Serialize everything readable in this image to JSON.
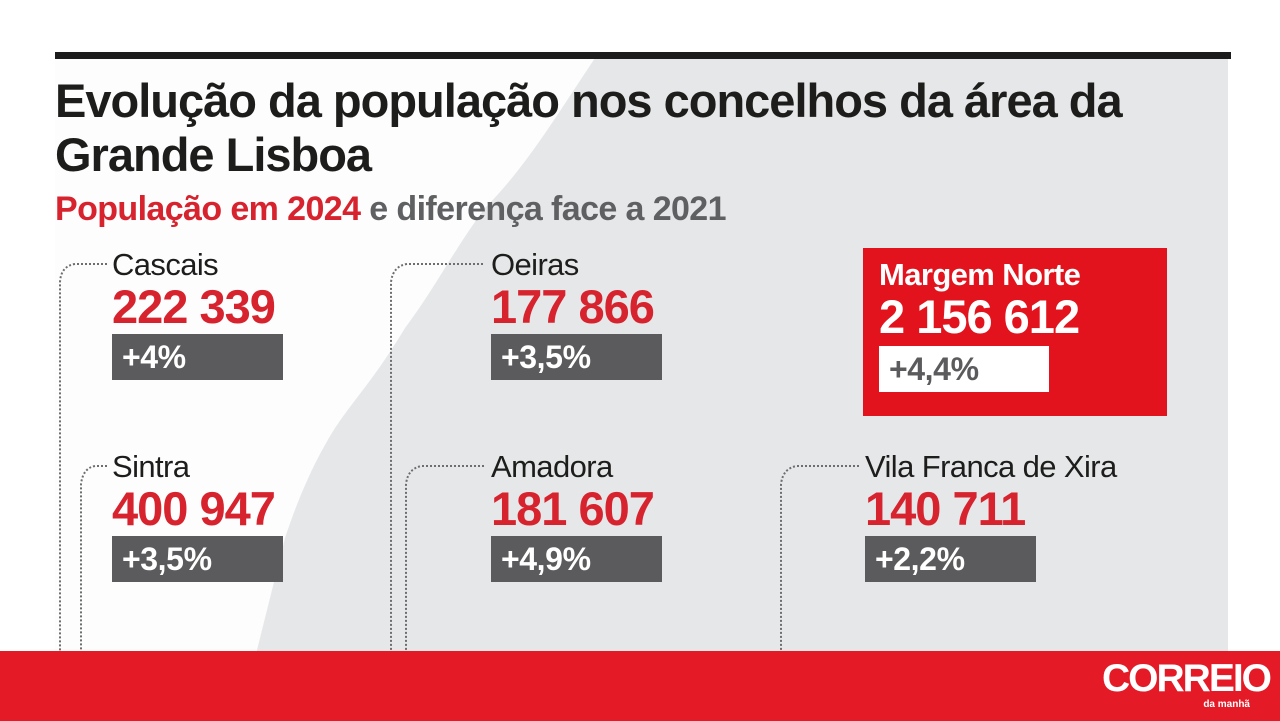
{
  "infographic": {
    "title": "Evolução da população nos concelhos da área da Grande Lisboa",
    "subtitle_highlight": "População em 2024",
    "subtitle_rest": "e diferença face a 2021",
    "municipalities": [
      {
        "name": "Cascais",
        "population_2024": "222 339",
        "change_vs_2021": "+4%"
      },
      {
        "name": "Oeiras",
        "population_2024": "177 866",
        "change_vs_2021": "+3,5%"
      },
      {
        "name": "Sintra",
        "population_2024": "400 947",
        "change_vs_2021": "+3,5%"
      },
      {
        "name": "Amadora",
        "population_2024": "181 607",
        "change_vs_2021": "+4,9%"
      },
      {
        "name": "Vila Franca de Xira",
        "population_2024": "140 711",
        "change_vs_2021": "+2,2%"
      }
    ],
    "total": {
      "name": "Margem Norte",
      "population_2024": "2 156 612",
      "change_vs_2021": "+4,4%"
    }
  },
  "banner": {
    "logo_main": "CORREIO",
    "logo_sub": "da manhã"
  },
  "colors": {
    "accent_red": "#d7232e",
    "total_box_red": "#e3131d",
    "change_box_gray": "#5b5b5d",
    "panel_gray": "#e6e7e9",
    "banner_red": "#e51a27"
  }
}
